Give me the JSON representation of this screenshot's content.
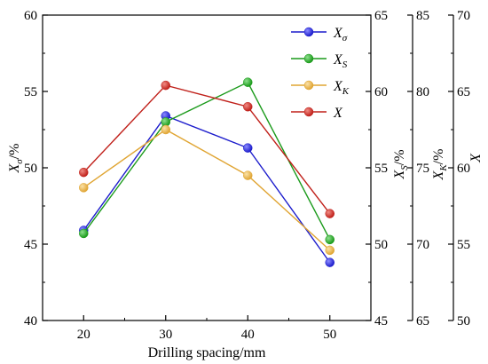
{
  "chart_data": {
    "type": "line",
    "x": [
      20,
      30,
      40,
      50
    ],
    "xlabel": "Drilling spacing/mm",
    "xlim": [
      15,
      55
    ],
    "xticks": [
      "20",
      "30",
      "40",
      "50"
    ],
    "grid": false,
    "legend_position": "top-right",
    "series": [
      {
        "key": "sigma",
        "name": "X",
        "name_sub": "σ",
        "color": "#1c1ccc",
        "axis": "y1",
        "values": [
          45.9,
          53.4,
          51.3,
          43.8
        ]
      },
      {
        "key": "S",
        "name": "X",
        "name_sub": "S",
        "color": "#1a9a1a",
        "axis": "y2",
        "values": [
          50.7,
          58.0,
          60.6,
          50.3
        ]
      },
      {
        "key": "K",
        "name": "X",
        "name_sub": "K",
        "color": "#e0a533",
        "axis": "y3",
        "values": [
          73.7,
          77.5,
          74.5,
          69.6
        ]
      },
      {
        "key": "X",
        "name": "X",
        "name_sub": "",
        "color": "#c0201a",
        "axis": "y4",
        "values": [
          59.7,
          65.4,
          64.0,
          57.0
        ]
      }
    ],
    "axes": {
      "y1": {
        "label_main": "X",
        "label_sub": "σ",
        "label_unit": "/%",
        "lim": [
          40,
          60
        ],
        "ticks": [
          "40",
          "45",
          "50",
          "55",
          "60"
        ]
      },
      "y2": {
        "label_main": "X",
        "label_sub": "S",
        "label_unit": "/%",
        "lim": [
          45,
          65
        ],
        "ticks": [
          "45",
          "50",
          "55",
          "60",
          "65"
        ]
      },
      "y3": {
        "label_main": "X",
        "label_sub": "K",
        "label_unit": "/%",
        "lim": [
          65,
          85
        ],
        "ticks": [
          "65",
          "70",
          "75",
          "80",
          "85"
        ]
      },
      "y4": {
        "label_main": "X",
        "label_sub": "",
        "label_unit": "",
        "lim": [
          50,
          70
        ],
        "ticks": [
          "50",
          "55",
          "60",
          "65",
          "70"
        ]
      }
    }
  }
}
